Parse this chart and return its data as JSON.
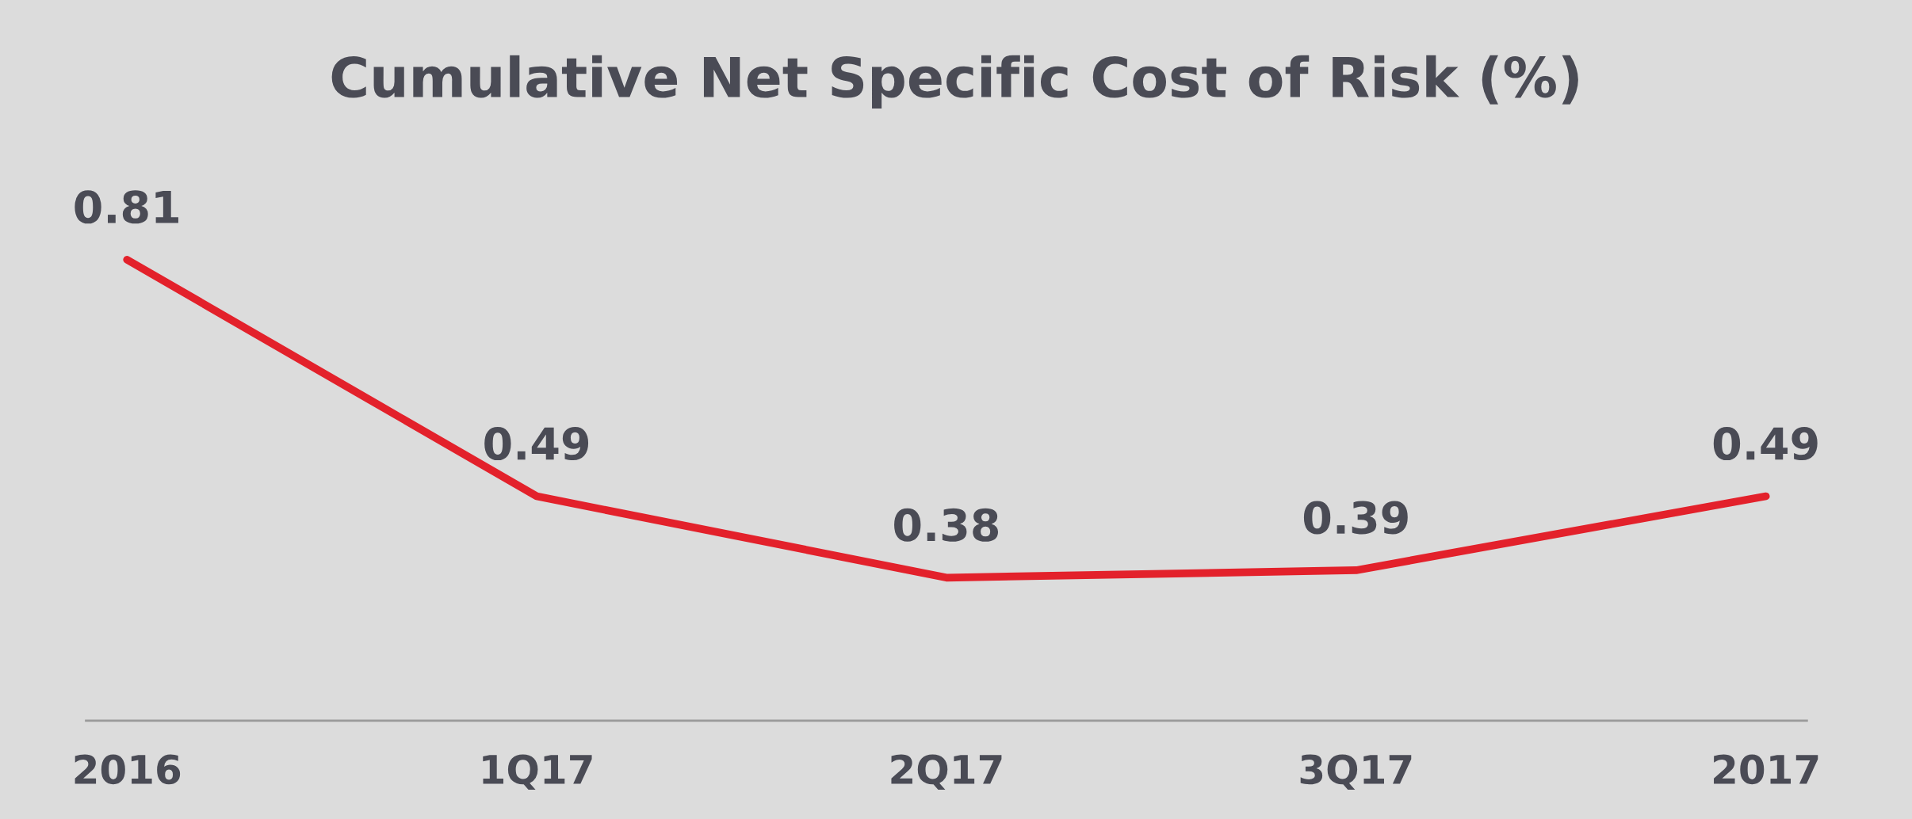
{
  "chart_data": {
    "type": "line",
    "title": "Cumulative Net Specific Cost of Risk (%)",
    "categories": [
      "2016",
      "1Q17",
      "2Q17",
      "3Q17",
      "2017"
    ],
    "values": [
      0.81,
      0.49,
      0.38,
      0.39,
      0.49
    ],
    "color": "#e3212b",
    "data_labels": true,
    "grid": false,
    "legend": false,
    "marker": "none",
    "line_style": "solid"
  }
}
